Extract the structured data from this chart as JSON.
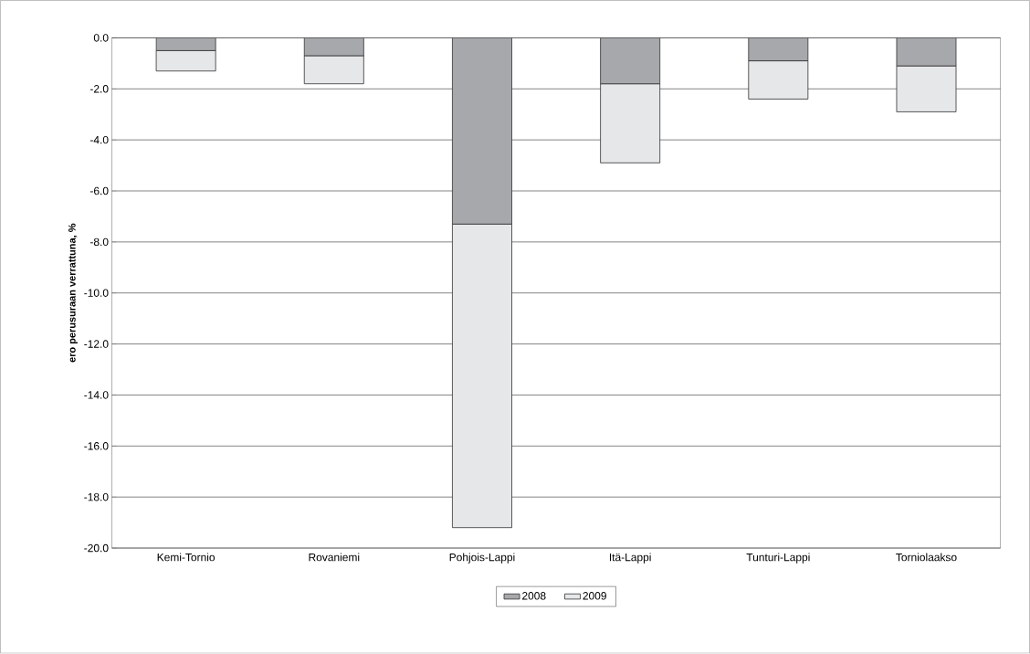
{
  "chart_data": {
    "type": "bar",
    "stacked": true,
    "ylabel": "ero perusuraan verrattuna, %",
    "categories": [
      "Kemi-Tornio",
      "Rovaniemi",
      "Pohjois-Lappi",
      "Itä-Lappi",
      "Tunturi-Lappi",
      "Torniolaakso"
    ],
    "series": [
      {
        "name": "2008",
        "color": "#a7a8ab",
        "values": [
          -0.5,
          -0.7,
          -7.3,
          -1.8,
          -0.9,
          -1.1
        ]
      },
      {
        "name": "2009",
        "color": "#e6e7e9",
        "values": [
          -0.8,
          -1.1,
          -11.9,
          -3.1,
          -1.5,
          -1.8
        ]
      }
    ],
    "ylim": [
      -20,
      0
    ],
    "yticks": [
      {
        "value": 0,
        "label": "0.0"
      },
      {
        "value": -2,
        "label": "-2.0"
      },
      {
        "value": -4,
        "label": "-4.0"
      },
      {
        "value": -6,
        "label": "-6.0"
      },
      {
        "value": -8,
        "label": "-8.0"
      },
      {
        "value": -10,
        "label": "-10.0"
      },
      {
        "value": -12,
        "label": "-12.0"
      },
      {
        "value": -14,
        "label": "-14.0"
      },
      {
        "value": -16,
        "label": "-16.0"
      },
      {
        "value": -18,
        "label": "-18.0"
      },
      {
        "value": -20,
        "label": "-20.0"
      }
    ],
    "grid": "y",
    "legend": "bottom"
  }
}
